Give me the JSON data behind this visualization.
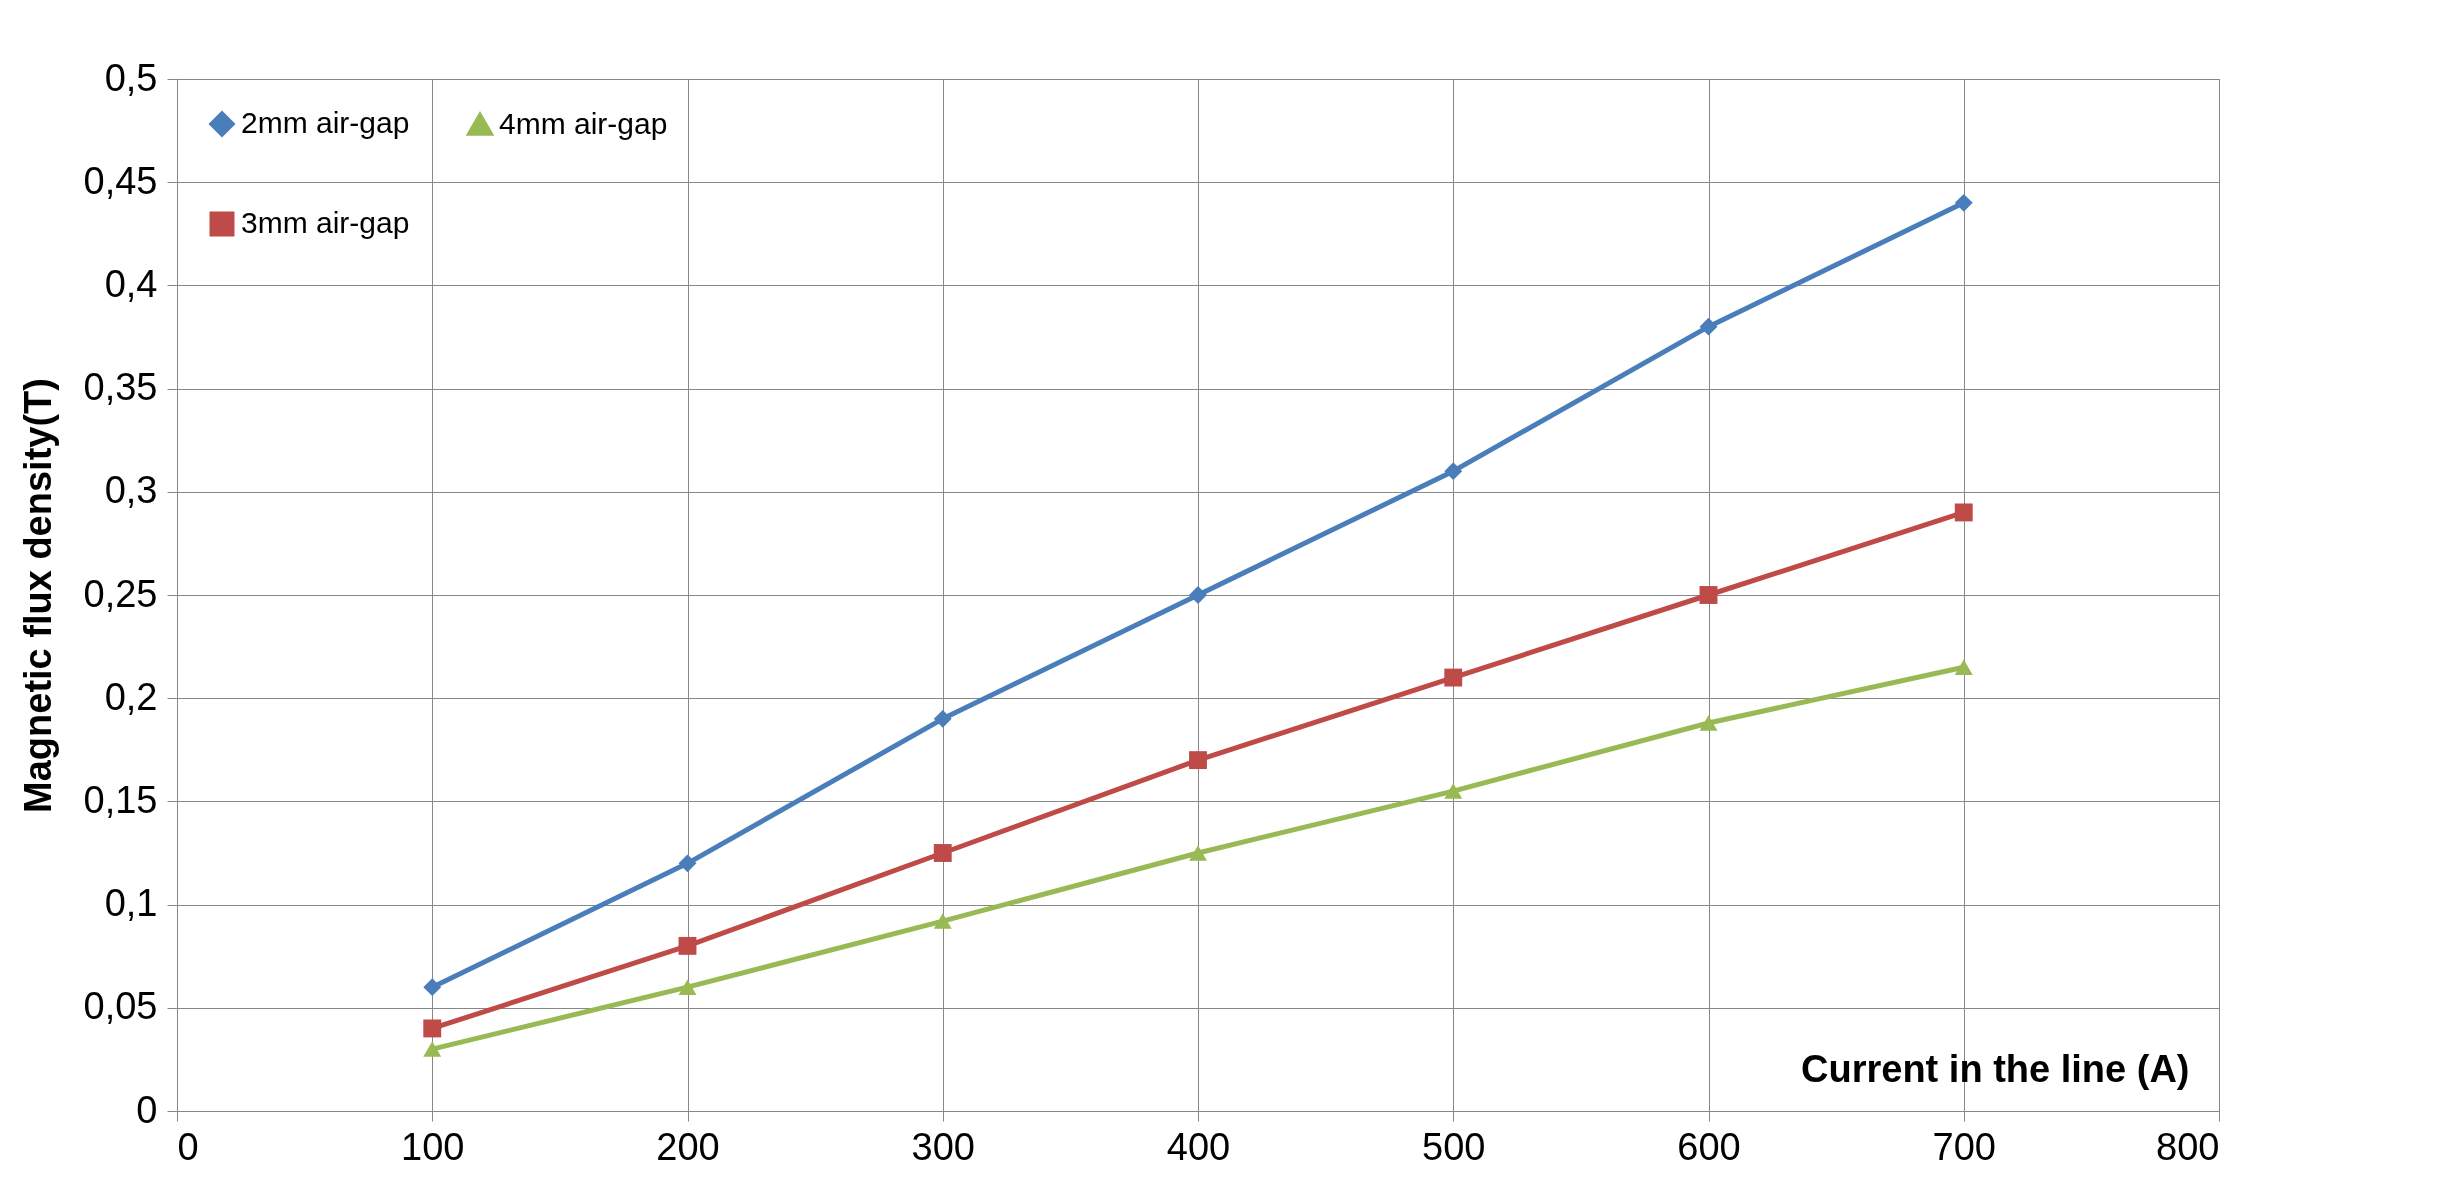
{
  "chart_data": {
    "type": "line",
    "xlabel": "Current in the line (A)",
    "ylabel": "Magnetic flux density(T)",
    "x": [
      100,
      200,
      300,
      400,
      500,
      600,
      700
    ],
    "series": [
      {
        "name": "2mm air-gap",
        "color": "#4a7ebb",
        "marker": "diamond",
        "values": [
          0.06,
          0.12,
          0.19,
          0.25,
          0.31,
          0.38,
          0.44
        ]
      },
      {
        "name": "3mm air-gap",
        "color": "#be4b48",
        "marker": "square",
        "values": [
          0.04,
          0.08,
          0.125,
          0.17,
          0.21,
          0.25,
          0.29
        ]
      },
      {
        "name": "4mm air-gap",
        "color": "#98b954",
        "marker": "triangle",
        "values": [
          0.03,
          0.06,
          0.092,
          0.125,
          0.155,
          0.188,
          0.215
        ]
      }
    ],
    "xlim": [
      0,
      800
    ],
    "xticks": [
      0,
      100,
      200,
      300,
      400,
      500,
      600,
      700,
      800
    ],
    "ylim": [
      0,
      0.5
    ],
    "yticks": [
      0,
      {
        "value": 0.05,
        "label": "0,05"
      },
      {
        "value": 0.1,
        "label": "0,1"
      },
      {
        "value": 0.15,
        "label": "0,15"
      },
      {
        "value": 0.2,
        "label": "0,2"
      },
      {
        "value": 0.25,
        "label": "0,25"
      },
      {
        "value": 0.3,
        "label": "0,3"
      },
      {
        "value": 0.35,
        "label": "0,35"
      },
      {
        "value": 0.4,
        "label": "0,4"
      },
      {
        "value": 0.45,
        "label": "0,45"
      },
      {
        "value": 0.5,
        "label": "0,5"
      }
    ],
    "grid": true,
    "legend": "top left",
    "line_style": "solid"
  }
}
